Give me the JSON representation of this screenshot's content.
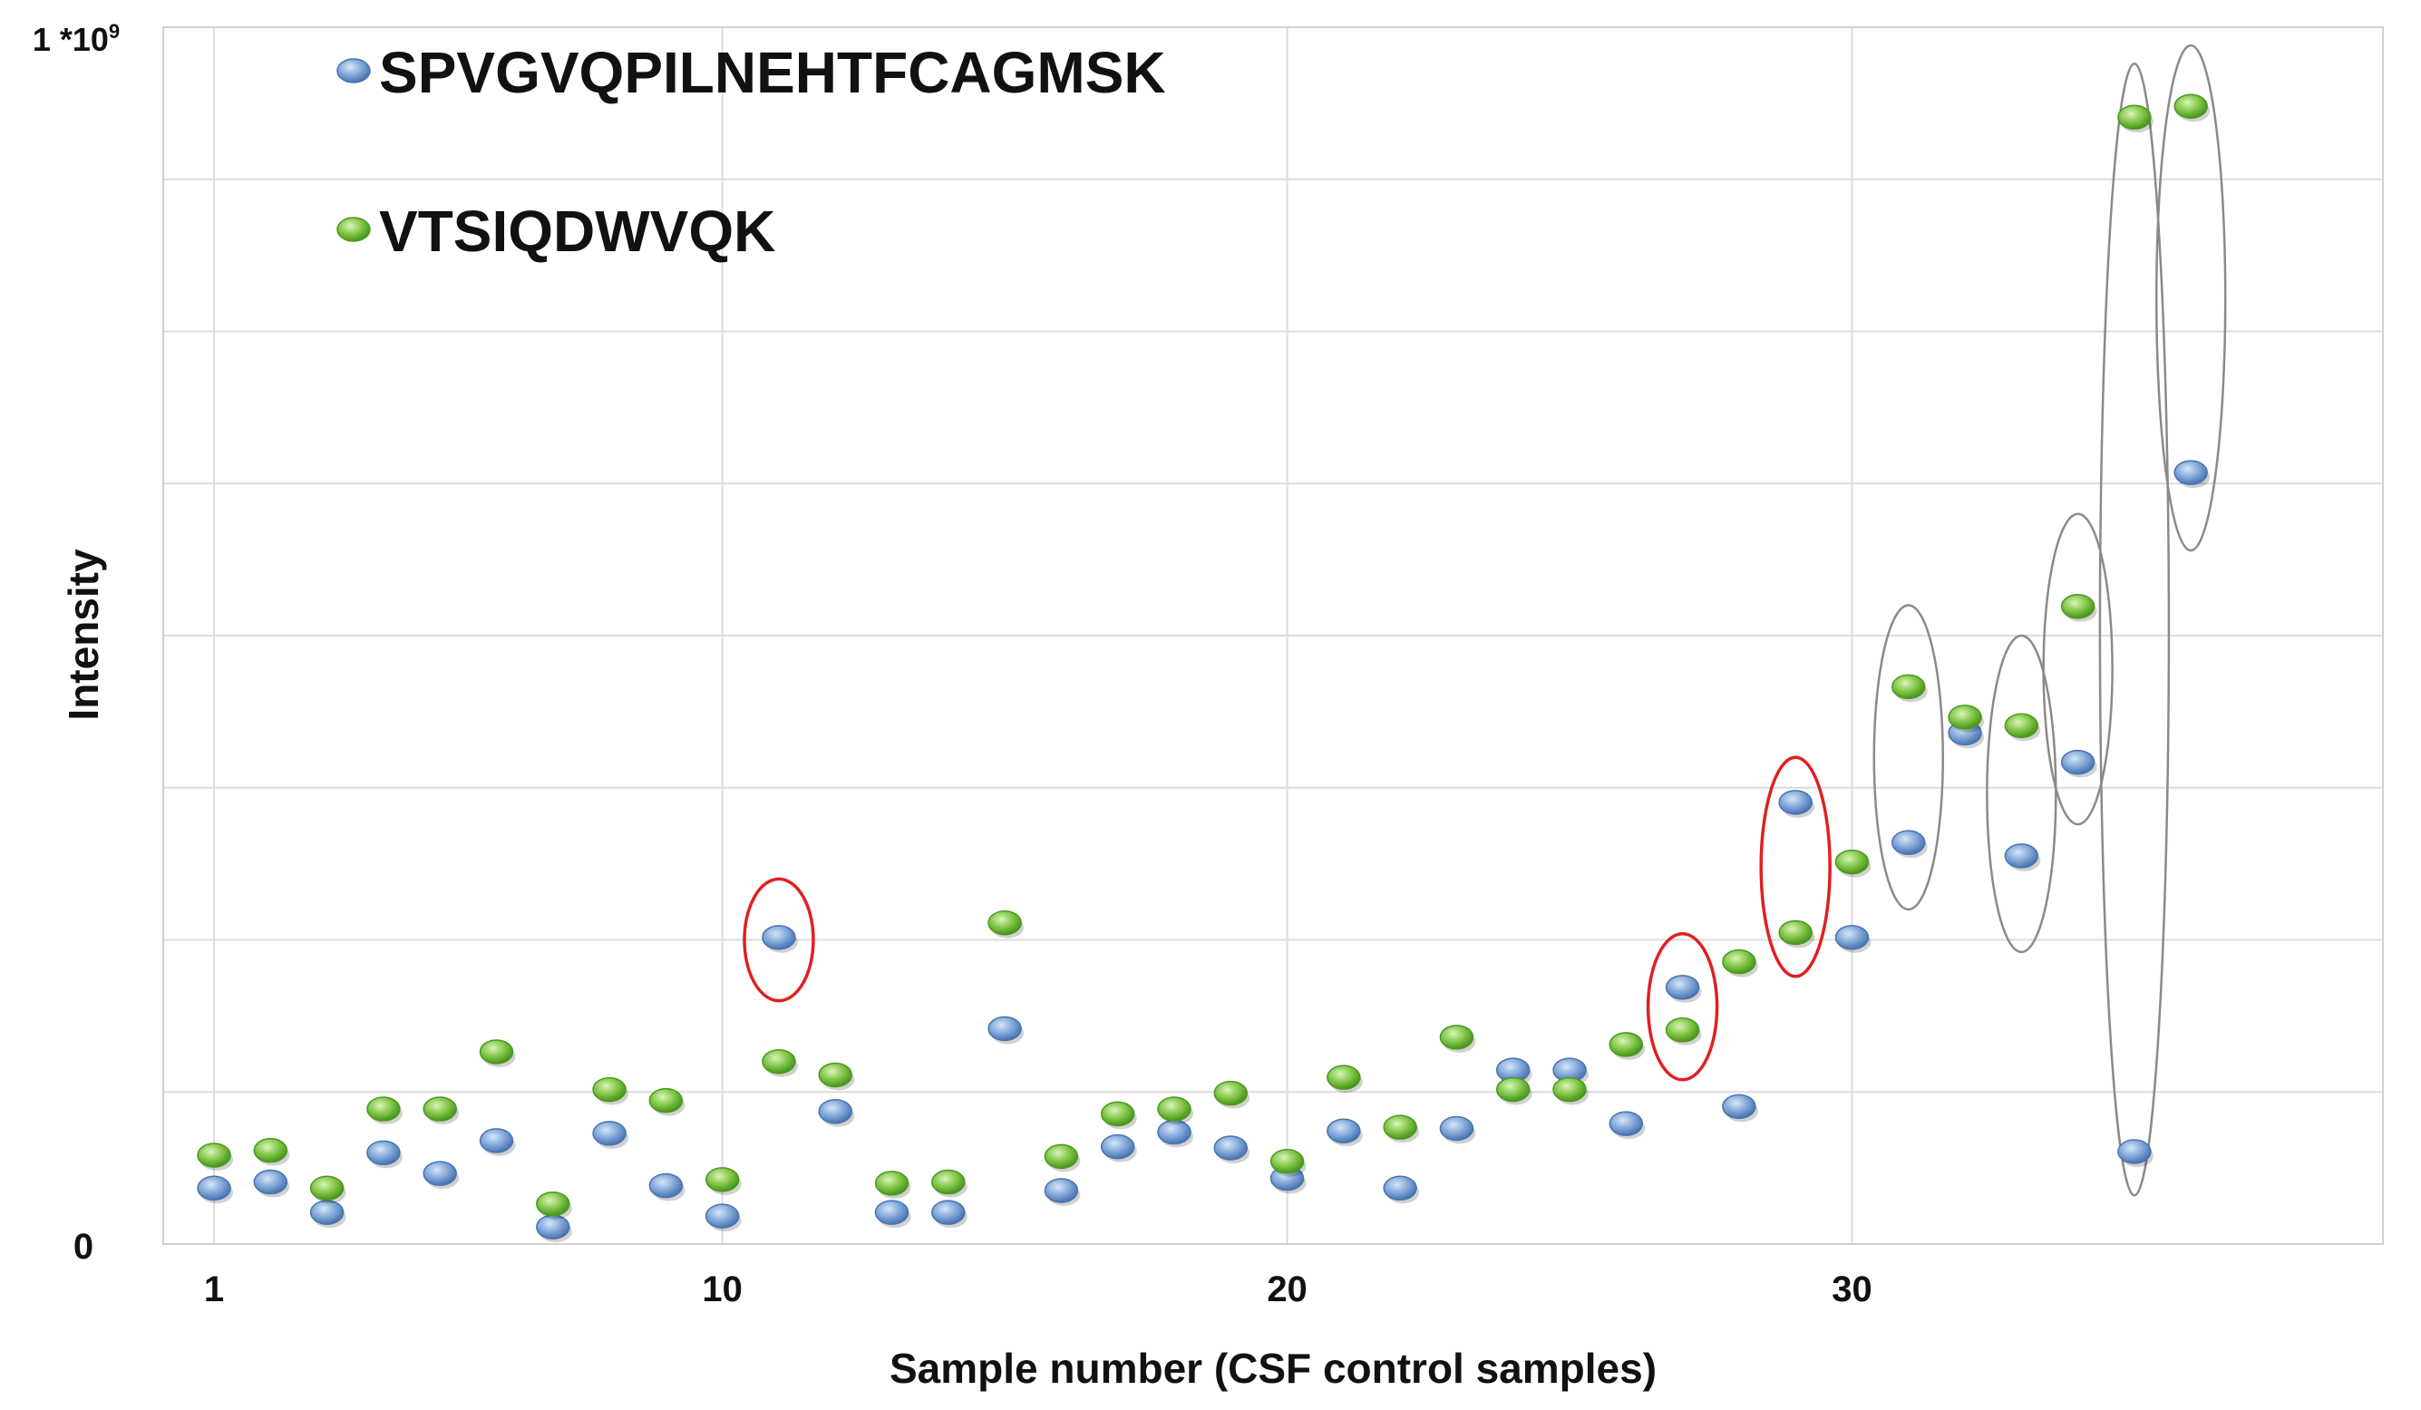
{
  "chart_data": {
    "type": "scatter",
    "title": "",
    "xlabel": "Sample number (CSF control samples)",
    "ylabel": "Intensity",
    "xlim": [
      0.1,
      39.4
    ],
    "ylim": [
      0,
      1000000000
    ],
    "xticks": [
      {
        "value": 1,
        "label": "1"
      },
      {
        "value": 10,
        "label": "10"
      },
      {
        "value": 20,
        "label": "20"
      },
      {
        "value": 30,
        "label": "30"
      }
    ],
    "y_tick_min_label": "0",
    "y_tick_max_label": {
      "base": "1 *10",
      "exp": "9"
    },
    "grid": true,
    "grid_x": [
      1,
      10,
      20,
      30
    ],
    "grid_y_step": 125000000,
    "legend_position": "top-left",
    "series": [
      {
        "name": "SPVGVQPILNEHTFCAGMSK",
        "color": "#7ba3d6",
        "x": [
          1,
          2,
          3,
          4,
          5,
          6,
          7,
          8,
          9,
          10,
          11,
          12,
          13,
          14,
          15,
          16,
          17,
          18,
          19,
          20,
          21,
          22,
          23,
          24,
          25,
          26,
          27,
          28,
          29,
          30,
          31,
          32,
          33,
          34,
          35,
          36
        ],
        "y": [
          46000000,
          51000000,
          26000000,
          75000000,
          58000000,
          85000000,
          14000000,
          91000000,
          48000000,
          23000000,
          252000000,
          109000000,
          26000000,
          26000000,
          177000000,
          44000000,
          80000000,
          92000000,
          79000000,
          54000000,
          93000000,
          46000000,
          95000000,
          143000000,
          143000000,
          99000000,
          211000000,
          113000000,
          363000000,
          252000000,
          330000000,
          420000000,
          319000000,
          396000000,
          76000000,
          634000000
        ]
      },
      {
        "name": "VTSIQDWVQK",
        "color": "#7cc242",
        "x": [
          1,
          2,
          3,
          4,
          5,
          6,
          7,
          8,
          9,
          10,
          11,
          12,
          13,
          14,
          15,
          16,
          17,
          18,
          19,
          20,
          21,
          22,
          23,
          24,
          25,
          26,
          27,
          28,
          29,
          30,
          31,
          32,
          33,
          34,
          35,
          36
        ],
        "y": [
          73000000,
          77000000,
          46000000,
          111000000,
          111000000,
          158000000,
          33000000,
          127000000,
          118000000,
          53000000,
          150000000,
          139000000,
          50000000,
          51000000,
          264000000,
          72000000,
          107000000,
          111000000,
          124000000,
          68000000,
          137000000,
          96000000,
          170000000,
          127000000,
          127000000,
          164000000,
          176000000,
          232000000,
          256000000,
          314000000,
          458000000,
          433000000,
          426000000,
          524000000,
          926000000,
          935000000
        ]
      }
    ],
    "annotations": [
      {
        "type": "ellipse",
        "color": "#e02020",
        "x": 11,
        "y_range": [
          200000000,
          300000000
        ]
      },
      {
        "type": "ellipse",
        "color": "#e02020",
        "x": 27,
        "y_range": [
          135000000,
          255000000
        ]
      },
      {
        "type": "ellipse",
        "color": "#e02020",
        "x": 29,
        "y_range": [
          220000000,
          400000000
        ]
      },
      {
        "type": "ellipse",
        "color": "#8a8a8a",
        "x": 31,
        "y_range": [
          275000000,
          525000000
        ]
      },
      {
        "type": "ellipse",
        "color": "#8a8a8a",
        "x": 33,
        "y_range": [
          240000000,
          500000000
        ]
      },
      {
        "type": "ellipse",
        "color": "#8a8a8a",
        "x": 34,
        "y_range": [
          345000000,
          600000000
        ]
      },
      {
        "type": "ellipse",
        "color": "#8a8a8a",
        "x": 35,
        "y_range": [
          40000000,
          970000000
        ]
      },
      {
        "type": "ellipse",
        "color": "#8a8a8a",
        "x": 36,
        "y_range": [
          570000000,
          985000000
        ]
      }
    ]
  }
}
